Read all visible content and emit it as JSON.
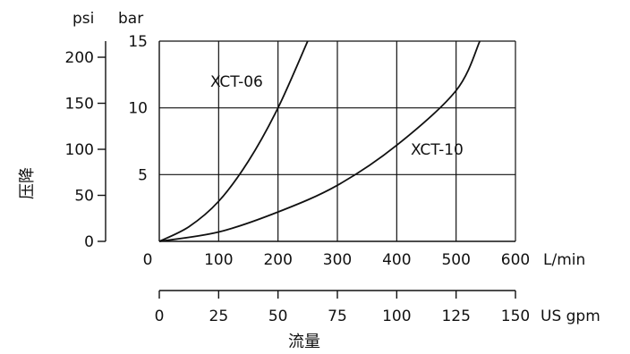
{
  "chart_data": {
    "type": "line",
    "x": {
      "label": "L/min",
      "ticks": [
        0,
        100,
        200,
        300,
        400,
        500,
        600
      ],
      "range": [
        0,
        600
      ]
    },
    "x_secondary": {
      "label": "US gpm",
      "ticks": [
        0,
        25,
        50,
        75,
        100,
        125,
        150
      ],
      "range": [
        0,
        150
      ]
    },
    "x_title": "流量",
    "y": {
      "label": "bar",
      "ticks": [
        0,
        5,
        10,
        15
      ],
      "tick_labels": [
        "",
        "5",
        "10",
        "15"
      ],
      "range": [
        0,
        15
      ]
    },
    "y_secondary": {
      "label": "psi",
      "ticks": [
        0,
        50,
        100,
        150,
        200
      ],
      "range": [
        0,
        217.5
      ]
    },
    "y_title": "压降",
    "origin_label": "0",
    "grid": true,
    "series": [
      {
        "name": "XCT-06",
        "points": [
          [
            0,
            0
          ],
          [
            50,
            1.1
          ],
          [
            100,
            3.0
          ],
          [
            150,
            6.0
          ],
          [
            200,
            10.0
          ],
          [
            250,
            15.0
          ]
        ]
      },
      {
        "name": "XCT-10",
        "points": [
          [
            0,
            0
          ],
          [
            100,
            0.7
          ],
          [
            200,
            2.2
          ],
          [
            300,
            4.2
          ],
          [
            400,
            7.2
          ],
          [
            500,
            11.3
          ],
          [
            540,
            15.0
          ]
        ]
      }
    ]
  }
}
